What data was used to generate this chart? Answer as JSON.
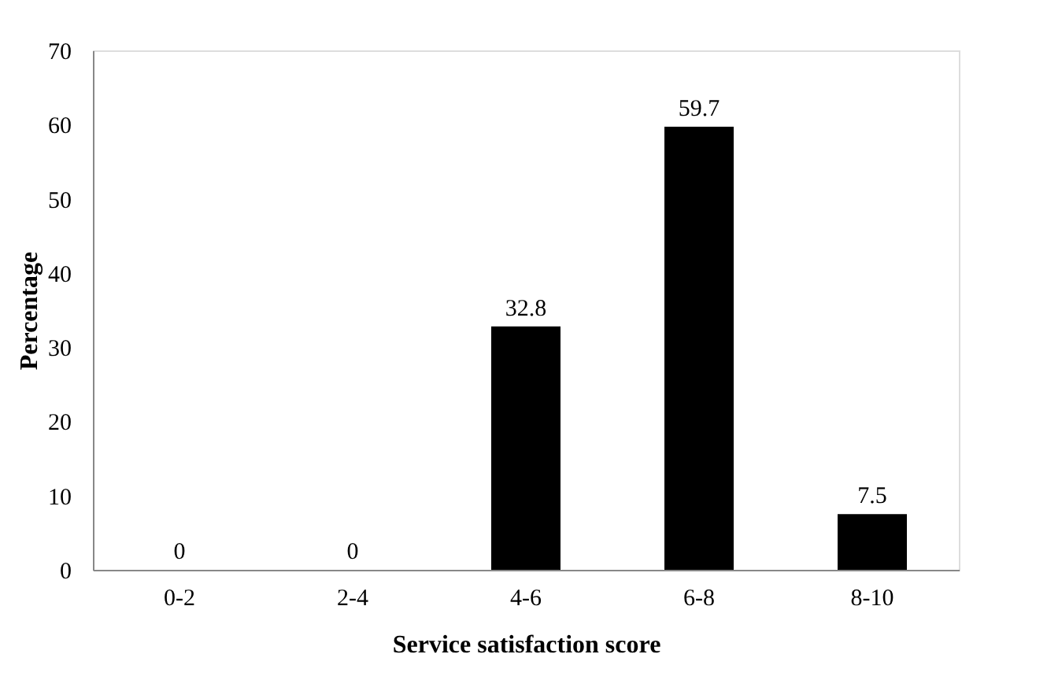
{
  "chart_data": {
    "type": "bar",
    "xlabel": "Service satisfaction score",
    "ylabel": "Percentage",
    "categories": [
      "0-2",
      "2-4",
      "4-6",
      "6-8",
      "8-10"
    ],
    "values": [
      0,
      0,
      32.8,
      59.7,
      7.5
    ],
    "color": "#000000",
    "ylim": [
      0,
      70
    ],
    "yticks": [
      0,
      10,
      20,
      30,
      40,
      50,
      60,
      70
    ],
    "grid": false,
    "data_labels": true
  }
}
